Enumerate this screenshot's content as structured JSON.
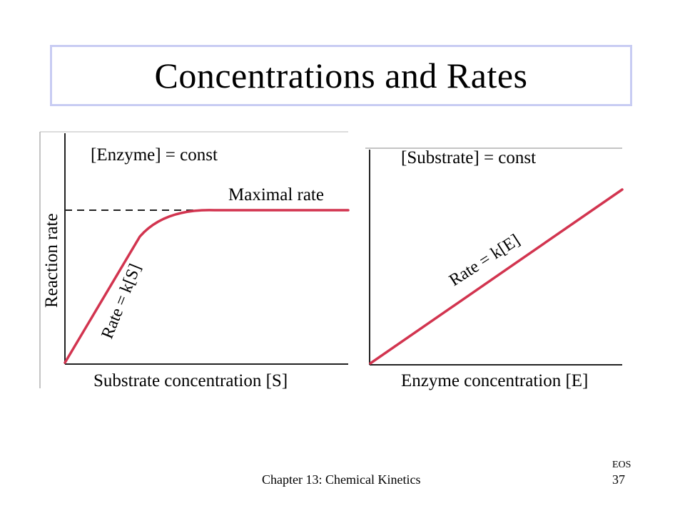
{
  "slide": {
    "title": "Concentrations and Rates",
    "footer": {
      "chapter": "Chapter 13: Chemical Kinetics",
      "eos": "EOS",
      "page": "37"
    }
  },
  "left_diagram": {
    "condition": "[Enzyme] = const",
    "ylabel": "Reaction rate",
    "xlabel": "Substrate concentration [S]",
    "curve_label": "Rate = k[S]",
    "plateau_label": "Maximal rate",
    "curve_color": "#d2344f"
  },
  "right_diagram": {
    "condition": "[Substrate] = const",
    "xlabel": "Enzyme concentration [E]",
    "line_label": "Rate = k[E]",
    "line_color": "#d2344f"
  }
}
